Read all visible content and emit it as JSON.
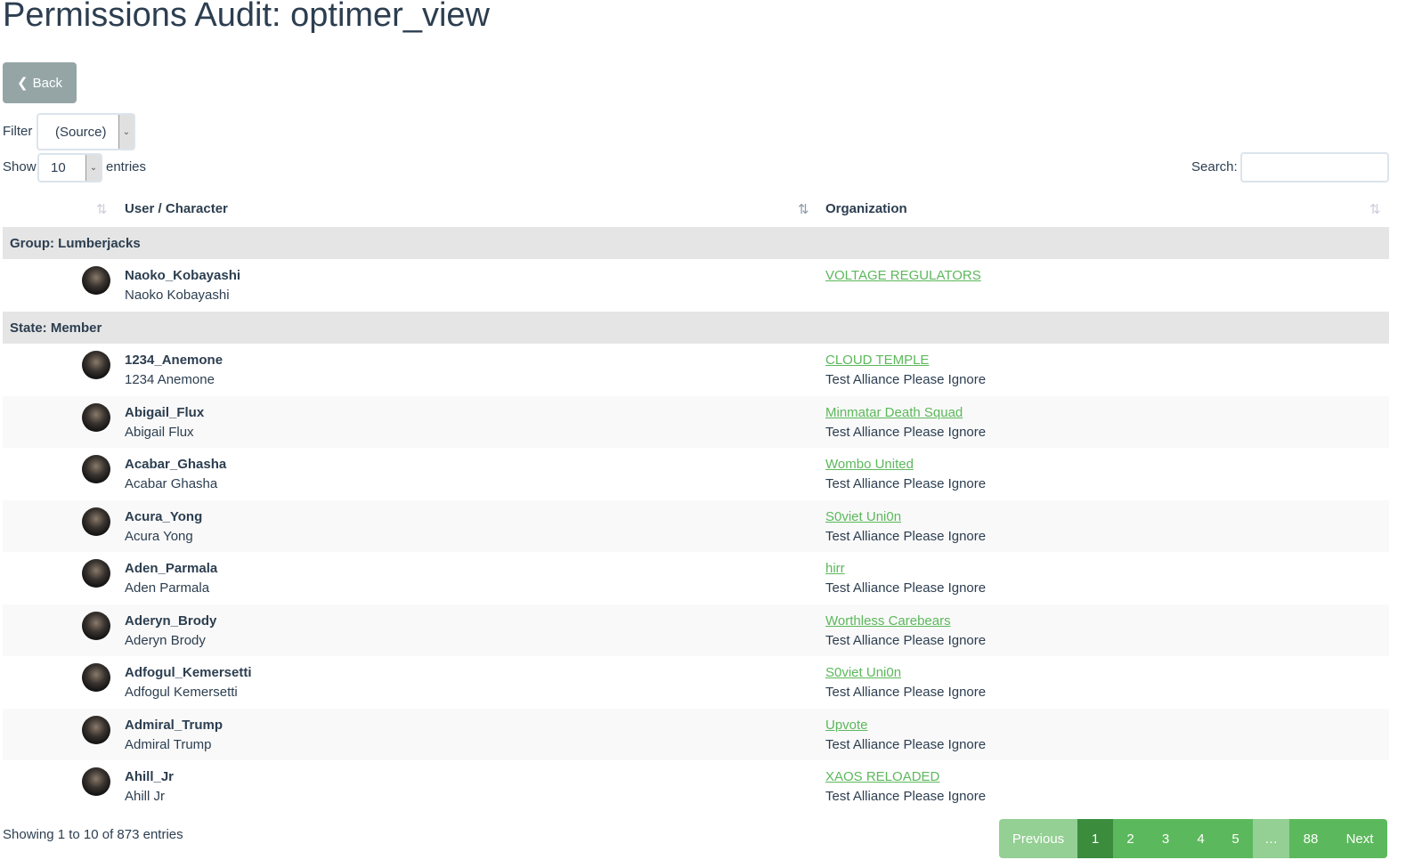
{
  "title": "Permissions Audit: optimer_view",
  "back_label": "Back",
  "filter": {
    "label": "Filter",
    "value": "(Source)"
  },
  "length": {
    "show": "Show",
    "value": "10",
    "entries": "entries"
  },
  "search": {
    "label": "Search:",
    "value": ""
  },
  "columns": [
    "User / Character",
    "Organization"
  ],
  "groups": [
    {
      "label": "Group: Lumberjacks",
      "rows": [
        {
          "user": "Naoko_Kobayashi",
          "character": "Naoko Kobayashi",
          "org": "VOLTAGE REGULATORS",
          "alliance": ""
        }
      ]
    },
    {
      "label": "State: Member",
      "rows": [
        {
          "user": "1234_Anemone",
          "character": "1234 Anemone",
          "org": "CLOUD TEMPLE",
          "alliance": "Test Alliance Please Ignore"
        },
        {
          "user": "Abigail_Flux",
          "character": "Abigail Flux",
          "org": "Minmatar Death Squad",
          "alliance": "Test Alliance Please Ignore"
        },
        {
          "user": "Acabar_Ghasha",
          "character": "Acabar Ghasha",
          "org": "Wombo United",
          "alliance": "Test Alliance Please Ignore"
        },
        {
          "user": "Acura_Yong",
          "character": "Acura Yong",
          "org": "S0viet Uni0n",
          "alliance": "Test Alliance Please Ignore"
        },
        {
          "user": "Aden_Parmala",
          "character": "Aden Parmala",
          "org": "hirr",
          "alliance": "Test Alliance Please Ignore"
        },
        {
          "user": "Aderyn_Brody",
          "character": "Aderyn Brody",
          "org": "Worthless Carebears",
          "alliance": "Test Alliance Please Ignore"
        },
        {
          "user": "Adfogul_Kemersetti",
          "character": "Adfogul Kemersetti",
          "org": "S0viet Uni0n",
          "alliance": "Test Alliance Please Ignore"
        },
        {
          "user": "Admiral_Trump",
          "character": "Admiral Trump",
          "org": "Upvote",
          "alliance": "Test Alliance Please Ignore"
        },
        {
          "user": "Ahill_Jr",
          "character": "Ahill Jr",
          "org": "XAOS RELOADED",
          "alliance": "Test Alliance Please Ignore"
        }
      ]
    }
  ],
  "info": "Showing 1 to 10 of 873 entries",
  "pagination": [
    {
      "label": "Previous",
      "state": "disabled"
    },
    {
      "label": "1",
      "state": "active"
    },
    {
      "label": "2"
    },
    {
      "label": "3"
    },
    {
      "label": "4"
    },
    {
      "label": "5"
    },
    {
      "label": "…",
      "state": "disabled"
    },
    {
      "label": "88"
    },
    {
      "label": "Next"
    }
  ],
  "colors": {
    "accent": "#5cb85c",
    "active": "#3b8d3d",
    "back": "#95a5a6",
    "group_bg": "#e5e5e5"
  }
}
